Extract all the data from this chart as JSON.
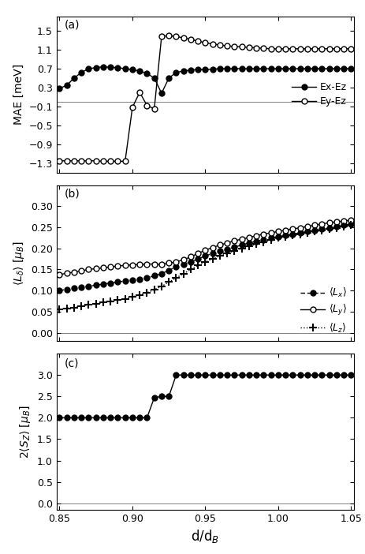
{
  "x": [
    0.85,
    0.855,
    0.86,
    0.865,
    0.87,
    0.875,
    0.88,
    0.885,
    0.89,
    0.895,
    0.9,
    0.905,
    0.91,
    0.915,
    0.92,
    0.925,
    0.93,
    0.935,
    0.94,
    0.945,
    0.95,
    0.955,
    0.96,
    0.965,
    0.97,
    0.975,
    0.98,
    0.985,
    0.99,
    0.995,
    1.0,
    1.005,
    1.01,
    1.015,
    1.02,
    1.025,
    1.03,
    1.035,
    1.04,
    1.045,
    1.05
  ],
  "mae_ex_ez": [
    0.28,
    0.35,
    0.5,
    0.62,
    0.7,
    0.72,
    0.74,
    0.73,
    0.72,
    0.7,
    0.68,
    0.65,
    0.6,
    0.5,
    0.18,
    0.5,
    0.62,
    0.65,
    0.67,
    0.68,
    0.68,
    0.69,
    0.7,
    0.7,
    0.7,
    0.7,
    0.7,
    0.7,
    0.7,
    0.7,
    0.7,
    0.7,
    0.7,
    0.7,
    0.7,
    0.7,
    0.7,
    0.7,
    0.7,
    0.7,
    0.7
  ],
  "mae_ey_ez": [
    -1.25,
    -1.25,
    -1.25,
    -1.25,
    -1.25,
    -1.25,
    -1.26,
    -1.26,
    -1.26,
    -1.26,
    -0.12,
    0.2,
    -0.08,
    -0.15,
    1.38,
    1.4,
    1.38,
    1.35,
    1.32,
    1.28,
    1.25,
    1.22,
    1.2,
    1.18,
    1.17,
    1.16,
    1.15,
    1.14,
    1.13,
    1.12,
    1.12,
    1.12,
    1.12,
    1.12,
    1.12,
    1.12,
    1.12,
    1.12,
    1.12,
    1.12,
    1.12
  ],
  "lx": [
    0.1,
    0.103,
    0.106,
    0.108,
    0.11,
    0.113,
    0.115,
    0.118,
    0.12,
    0.123,
    0.125,
    0.127,
    0.13,
    0.135,
    0.14,
    0.148,
    0.156,
    0.162,
    0.168,
    0.175,
    0.182,
    0.188,
    0.193,
    0.198,
    0.203,
    0.208,
    0.213,
    0.217,
    0.221,
    0.225,
    0.228,
    0.231,
    0.234,
    0.237,
    0.24,
    0.243,
    0.246,
    0.249,
    0.252,
    0.255,
    0.258
  ],
  "ly": [
    0.138,
    0.141,
    0.144,
    0.147,
    0.15,
    0.152,
    0.154,
    0.156,
    0.158,
    0.16,
    0.161,
    0.162,
    0.163,
    0.163,
    0.162,
    0.165,
    0.168,
    0.173,
    0.18,
    0.188,
    0.196,
    0.202,
    0.208,
    0.213,
    0.218,
    0.222,
    0.226,
    0.23,
    0.234,
    0.237,
    0.24,
    0.243,
    0.246,
    0.249,
    0.252,
    0.255,
    0.258,
    0.261,
    0.263,
    0.265,
    0.267
  ],
  "lz": [
    0.055,
    0.058,
    0.06,
    0.063,
    0.066,
    0.068,
    0.072,
    0.075,
    0.078,
    0.08,
    0.085,
    0.09,
    0.095,
    0.102,
    0.11,
    0.12,
    0.13,
    0.14,
    0.15,
    0.16,
    0.168,
    0.175,
    0.182,
    0.188,
    0.194,
    0.2,
    0.205,
    0.21,
    0.215,
    0.22,
    0.225,
    0.228,
    0.231,
    0.234,
    0.237,
    0.24,
    0.243,
    0.246,
    0.249,
    0.252,
    0.255
  ],
  "sz": [
    2.0,
    2.0,
    2.0,
    2.0,
    2.0,
    2.0,
    2.0,
    2.0,
    2.0,
    2.0,
    2.0,
    2.0,
    2.0,
    2.47,
    2.5,
    2.5,
    3.0,
    3.0,
    3.0,
    3.0,
    3.0,
    3.0,
    3.0,
    3.0,
    3.0,
    3.0,
    3.0,
    3.0,
    3.0,
    3.0,
    3.0,
    3.0,
    3.0,
    3.0,
    3.0,
    3.0,
    3.0,
    3.0,
    3.0,
    3.0,
    3.0
  ],
  "panel_a_label": "(a)",
  "panel_b_label": "(b)",
  "panel_c_label": "(c)",
  "xlabel": "d/d$_B$",
  "ylabel_a": "MAE [meV]",
  "ylabel_b": "$\\langle L_\\delta \\rangle$ [$\\mu_B$]",
  "ylabel_c": "2$\\langle S_Z\\rangle$ [$\\mu_B$]",
  "legend_a_1": "Ex-Ez",
  "legend_a_2": "Ey-Ez",
  "legend_b_1": "$\\langle L_x\\rangle$",
  "legend_b_2": "$\\langle L_y\\rangle$",
  "legend_b_3": "$\\langle L_z\\rangle$",
  "ylim_a": [
    -1.5,
    1.8
  ],
  "ylim_b": [
    -0.02,
    0.35
  ],
  "ylim_c": [
    -0.15,
    3.5
  ],
  "yticks_a": [
    -1.3,
    -0.9,
    -0.5,
    -0.1,
    0.3,
    0.7,
    1.1,
    1.5
  ],
  "yticks_b": [
    0.0,
    0.05,
    0.1,
    0.15,
    0.2,
    0.25,
    0.3
  ],
  "yticks_c": [
    0.0,
    0.5,
    1.0,
    1.5,
    2.0,
    2.5,
    3.0
  ],
  "xticks": [
    0.85,
    0.9,
    0.95,
    1.0,
    1.05
  ]
}
